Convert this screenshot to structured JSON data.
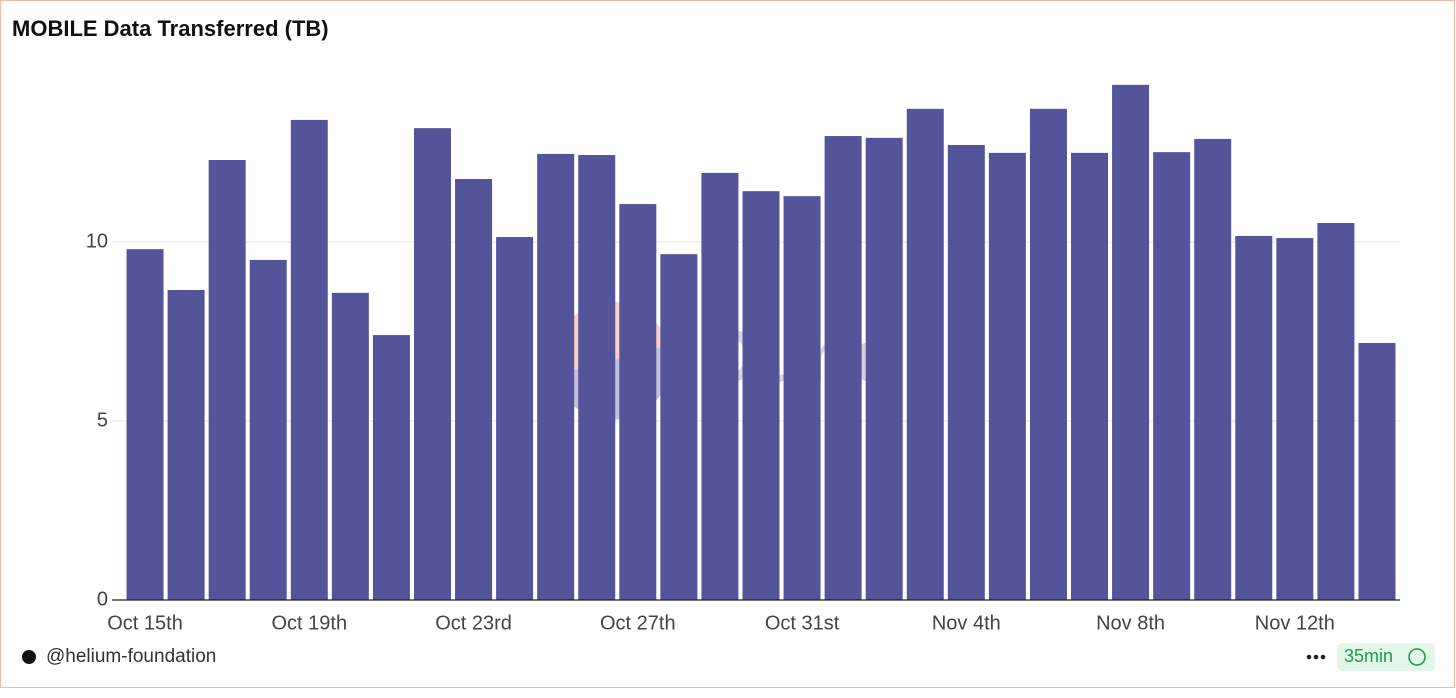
{
  "chart_data": {
    "type": "bar",
    "title": "MOBILE Data Transferred (TB)",
    "categories": [
      "Oct 15th",
      null,
      null,
      null,
      "Oct 19th",
      null,
      null,
      null,
      "Oct 23rd",
      null,
      null,
      null,
      "Oct 27th",
      null,
      null,
      null,
      "Oct 31st",
      null,
      null,
      null,
      "Nov 4th",
      null,
      null,
      null,
      "Nov 8th",
      null,
      null,
      null,
      "Nov 12th",
      null,
      null
    ],
    "values": [
      9.8,
      8.66,
      12.29,
      9.5,
      13.41,
      8.58,
      7.4,
      13.18,
      11.76,
      10.14,
      12.46,
      12.43,
      11.06,
      9.66,
      11.93,
      11.42,
      11.28,
      12.96,
      12.91,
      13.72,
      12.71,
      12.49,
      13.72,
      12.49,
      14.39,
      12.51,
      12.88,
      10.17,
      10.11,
      10.53,
      7.18
    ],
    "color": "#53549a",
    "ylim": [
      0,
      15
    ],
    "yticks": [
      0,
      5,
      10
    ],
    "grid": true,
    "watermark": "Dune",
    "author": "@helium-foundation",
    "refresh": "35min"
  }
}
